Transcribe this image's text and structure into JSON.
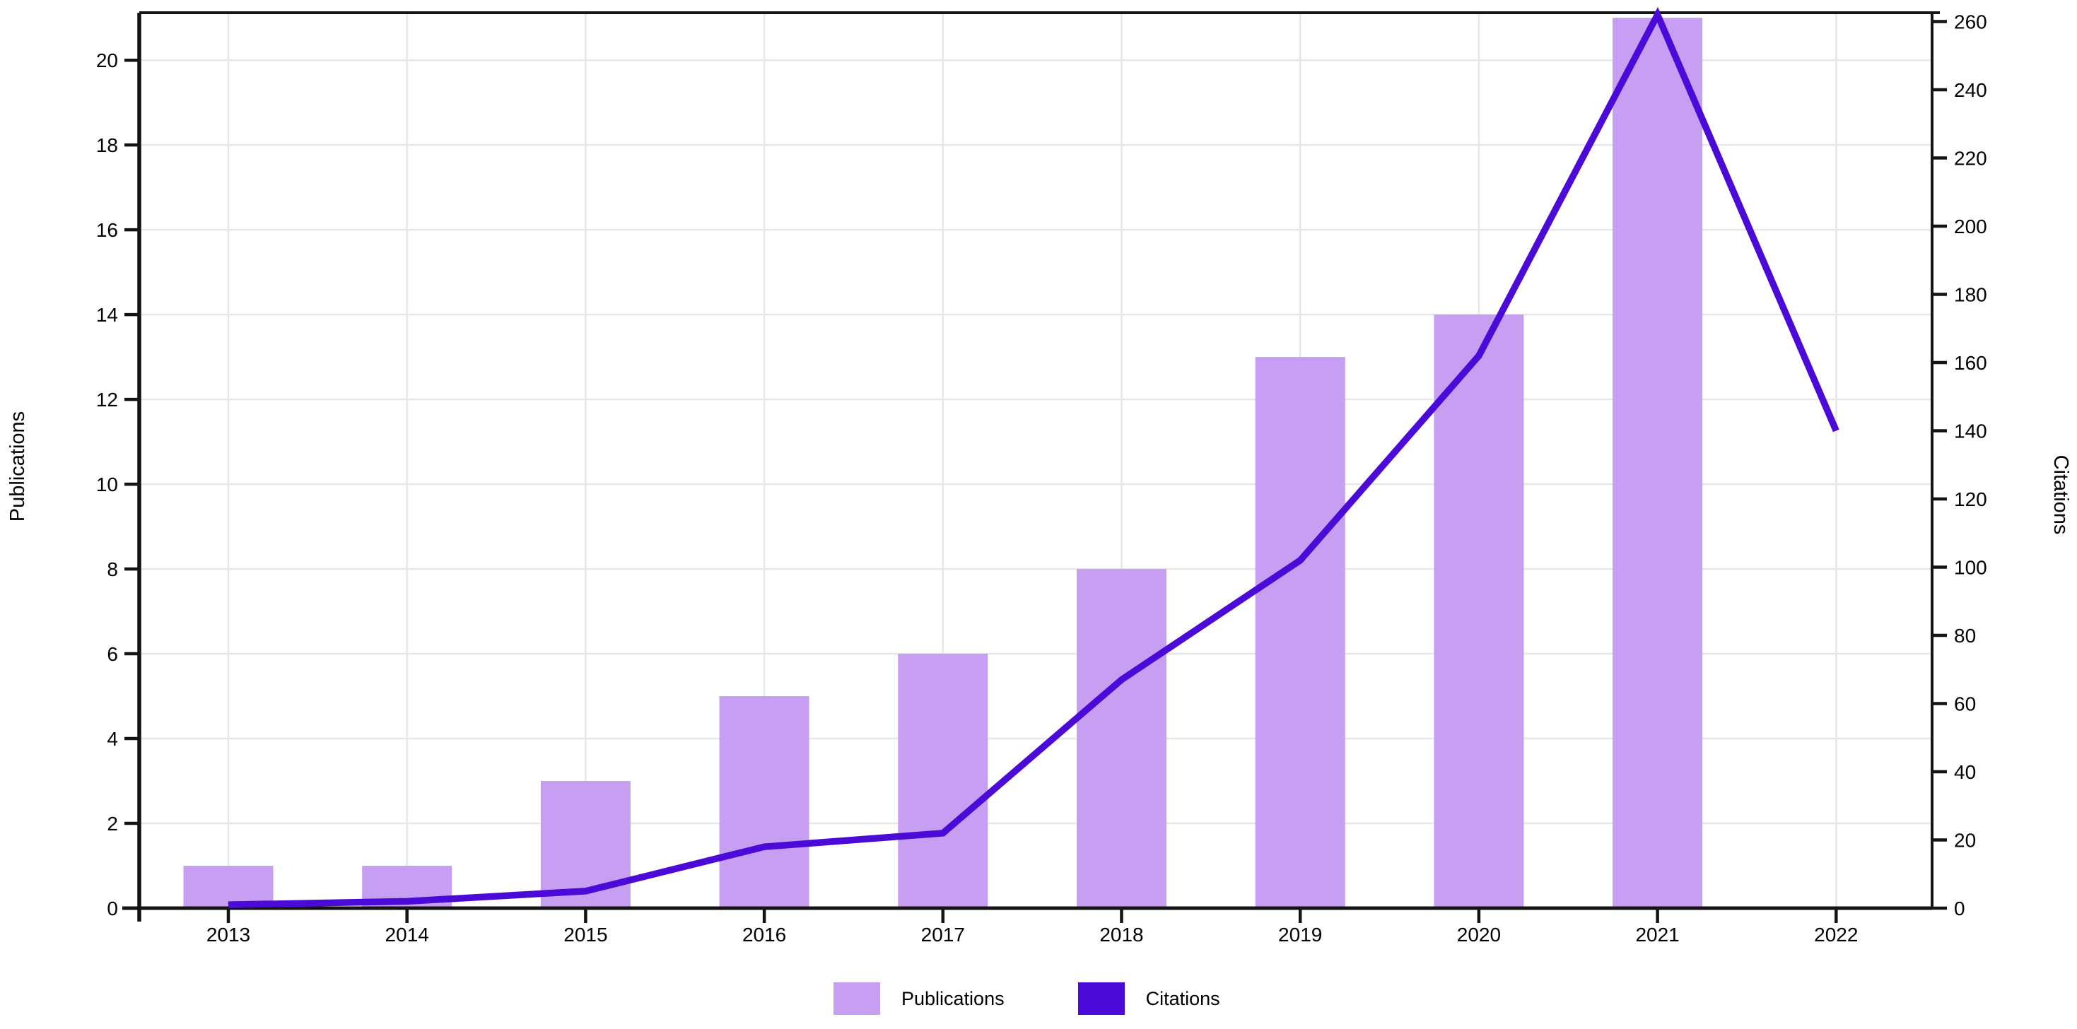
{
  "page": {
    "background": "#ffffff"
  },
  "chart_data": {
    "type": "combo",
    "title": "",
    "categories": [
      "2013",
      "2014",
      "2015",
      "2016",
      "2017",
      "2018",
      "2019",
      "2020",
      "2021",
      "2022"
    ],
    "series": [
      {
        "name": "Publications",
        "type": "bar",
        "axis": "left",
        "color": "#C79FF2",
        "values": [
          1,
          1,
          3,
          5,
          6,
          8,
          13,
          14,
          21,
          0
        ]
      },
      {
        "name": "Citations",
        "type": "line",
        "axis": "right",
        "color": "#4B0AD7",
        "values": [
          1,
          2,
          5,
          18,
          22,
          67,
          102,
          162,
          262,
          140
        ]
      }
    ],
    "axes": {
      "left": {
        "label": "Publications",
        "ticks": [
          0,
          2,
          4,
          6,
          8,
          10,
          12,
          14,
          16,
          18,
          20
        ],
        "range": [
          0,
          21.12
        ]
      },
      "right": {
        "label": "Citations",
        "ticks": [
          0,
          20,
          40,
          60,
          80,
          100,
          120,
          140,
          160,
          180,
          200,
          220,
          240,
          260
        ],
        "range": [
          0,
          262.6
        ]
      },
      "x": {
        "label": "",
        "ticks": [
          "2013",
          "2014",
          "2015",
          "2016",
          "2017",
          "2018",
          "2019",
          "2020",
          "2021",
          "2022"
        ]
      }
    },
    "grid": true,
    "legend": {
      "position": "bottom",
      "items": [
        {
          "label": "Publications",
          "color": "#C79FF2"
        },
        {
          "label": "Citations",
          "color": "#4B0AD7"
        }
      ]
    }
  },
  "colors": {
    "grid": "#E7E7E7",
    "axis": "#141414",
    "text": "#000000",
    "bar": "#C79FF2",
    "line": "#4B0AD7"
  }
}
